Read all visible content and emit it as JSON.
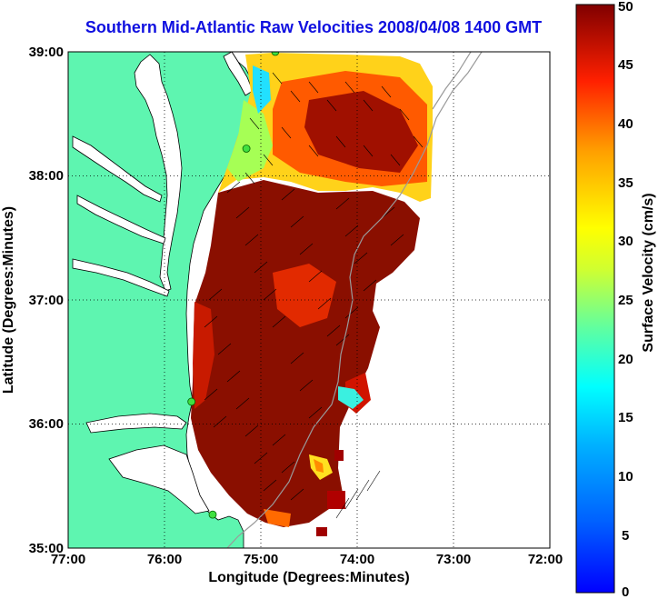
{
  "title": "Southern Mid-Atlantic Raw Velocities 2008/04/08 1400 GMT",
  "x_axis": {
    "label": "Longitude (Degrees:Minutes)",
    "ticks": [
      "77:00",
      "76:00",
      "75:00",
      "74:00",
      "73:00",
      "72:00"
    ],
    "range": [
      -77,
      -72
    ]
  },
  "y_axis": {
    "label": "Latitude (Degrees:Minutes)",
    "ticks": [
      "39:00",
      "38:00",
      "37:00",
      "36:00",
      "35:00"
    ],
    "range": [
      35,
      39
    ]
  },
  "colorbar": {
    "label": "Surface Velocity (cm/s)",
    "ticks": [
      "50",
      "45",
      "40",
      "35",
      "30",
      "25",
      "20",
      "15",
      "10",
      "5",
      "0"
    ],
    "range": [
      0,
      50
    ],
    "colormap": "jet"
  },
  "colors": {
    "land": "#5ef5b0",
    "water": "#ffffff",
    "title": "#1010e0",
    "grid": "#000000",
    "bathymetry": "#9a9a9a",
    "station": "#40e040"
  },
  "stations": [
    {
      "lon": -74.85,
      "lat": 39.0
    },
    {
      "lon": -75.15,
      "lat": 38.22
    },
    {
      "lon": -75.72,
      "lat": 36.18
    },
    {
      "lon": -75.5,
      "lat": 35.27
    }
  ]
}
